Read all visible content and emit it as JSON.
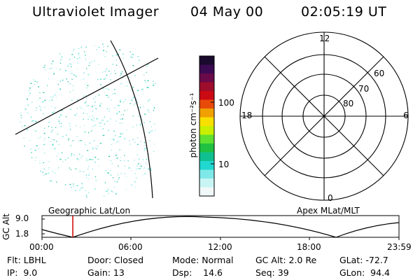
{
  "header": {
    "instrument": "Ultraviolet Imager",
    "date": "04 May 00",
    "time": "02:05:19 UT"
  },
  "colorbar": {
    "label": "photon cm⁻²s⁻¹",
    "ticks": [
      {
        "value": "100",
        "level": 100
      },
      {
        "value": "10",
        "level": 10
      }
    ],
    "colors": [
      "#1a0b2e",
      "#3b0a52",
      "#6a0a4a",
      "#9e0d2c",
      "#cc0a14",
      "#e84a0a",
      "#f0a000",
      "#f8e000",
      "#c8f000",
      "#60e030",
      "#20c040",
      "#10c090",
      "#20d8d0",
      "#7fe8e8",
      "#c8f4f4",
      "#f0f8f8"
    ]
  },
  "polar": {
    "mlt_labels": {
      "top": "12",
      "right": "6",
      "bottom": "0",
      "left": "18"
    },
    "lat_labels": [
      "60",
      "70",
      "80"
    ]
  },
  "altitude": {
    "axis_label": "GC Alt",
    "ticks": [
      "9.0",
      "1.8"
    ],
    "left_title": "Geographic Lat/Lon",
    "right_title": "Apex MLat/MLT",
    "time_ticks": [
      "00:00",
      "06:00",
      "12:00",
      "18:00",
      "23:59"
    ]
  },
  "footer": {
    "row1": [
      "Flt: LBHL",
      "Door: Closed",
      "Mode: Normal",
      "GC Alt: 2.0 Re",
      "GLat: -72.7"
    ],
    "row2": [
      "IP:  9.0",
      "Gain: 13",
      "Dsp:    14.6",
      "Seq: 39",
      "GLon:  94.4"
    ]
  }
}
